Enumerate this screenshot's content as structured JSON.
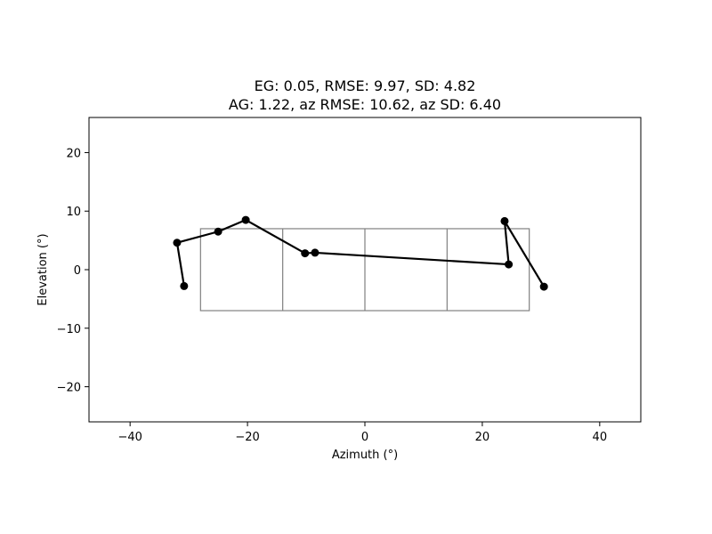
{
  "chart_data": {
    "type": "line",
    "title_lines": [
      "EG: 0.05, RMSE: 9.97, SD: 4.82",
      "AG: 1.22, az RMSE: 10.62, az SD: 6.40"
    ],
    "xlabel": "Azimuth (°)",
    "ylabel": "Elevation (°)",
    "xlim": [
      -47,
      47
    ],
    "ylim": [
      -26,
      26
    ],
    "xticks": [
      -40,
      -20,
      0,
      20,
      40
    ],
    "yticks": [
      -20,
      -10,
      0,
      10,
      20
    ],
    "xtick_labels": [
      "−40",
      "−20",
      "0",
      "20",
      "40"
    ],
    "ytick_labels": [
      "−20",
      "−10",
      "0",
      "10",
      "20"
    ],
    "grid": false,
    "series": [
      {
        "x": [
          -30.8,
          -32.0,
          -25.0,
          -20.3,
          -10.2,
          -8.5,
          24.5,
          23.8,
          30.5
        ],
        "y": [
          -2.8,
          4.6,
          6.5,
          8.5,
          2.8,
          2.9,
          0.9,
          8.3,
          -2.9
        ],
        "color": "#000000",
        "marker": "circle"
      }
    ],
    "reference_grid": {
      "x_edges": [
        -28,
        -14,
        0,
        14,
        28
      ],
      "y_range": [
        -7,
        7
      ],
      "color": "#808080"
    },
    "colors": {
      "frame": "#000000",
      "reference": "#808080",
      "line": "#000000"
    }
  }
}
